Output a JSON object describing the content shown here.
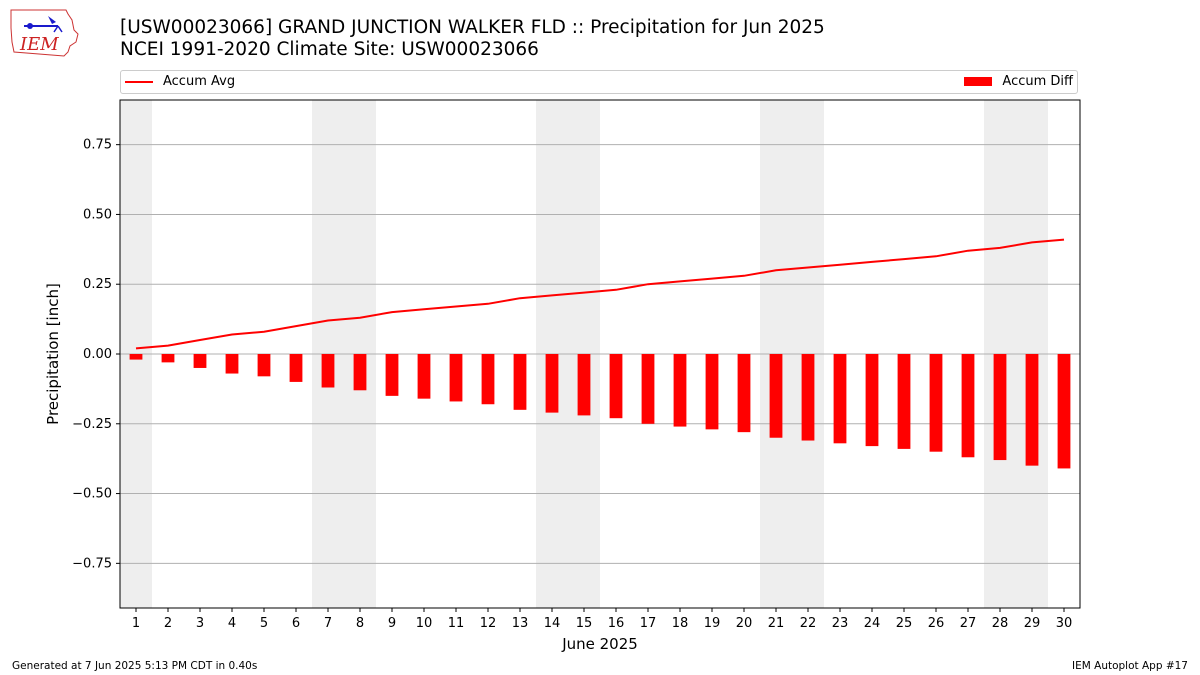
{
  "header": {
    "title_line1": "[USW00023066] GRAND JUNCTION WALKER FLD :: Precipitation for Jun 2025",
    "title_line2": "NCEI 1991-2020 Climate Site: USW00023066",
    "logo_text": "IEM"
  },
  "footer": {
    "left": "Generated at 7 Jun 2025 5:13 PM CDT in 0.40s",
    "right": "IEM Autoplot App #17"
  },
  "colors": {
    "accent": "#ff0000",
    "weekend_shade": "#eeeeee",
    "grid": "#b0b0b0"
  },
  "chart_data": {
    "type": "bar",
    "xlabel": "June 2025",
    "ylabel": "Precipitation [inch]",
    "ylim": [
      -0.91,
      0.91
    ],
    "xlim": [
      0.5,
      30.5
    ],
    "yticks": [
      -0.75,
      -0.5,
      -0.25,
      0.0,
      0.25,
      0.5,
      0.75
    ],
    "ytick_labels": [
      "−0.75",
      "−0.50",
      "−0.25",
      "0.00",
      "0.25",
      "0.50",
      "0.75"
    ],
    "categories": [
      "1",
      "2",
      "3",
      "4",
      "5",
      "6",
      "7",
      "8",
      "9",
      "10",
      "11",
      "12",
      "13",
      "14",
      "15",
      "16",
      "17",
      "18",
      "19",
      "20",
      "21",
      "22",
      "23",
      "24",
      "25",
      "26",
      "27",
      "28",
      "29",
      "30"
    ],
    "grid": "horizontal",
    "legend_placement": "top, above plot",
    "shaded_days": [
      1,
      7,
      8,
      14,
      15,
      21,
      22,
      28,
      29
    ],
    "series": [
      {
        "name": "Accum Avg",
        "kind": "line",
        "color": "#ff0000",
        "values": [
          0.02,
          0.03,
          0.05,
          0.07,
          0.08,
          0.1,
          0.12,
          0.13,
          0.15,
          0.16,
          0.17,
          0.18,
          0.2,
          0.21,
          0.22,
          0.23,
          0.25,
          0.26,
          0.27,
          0.28,
          0.3,
          0.31,
          0.32,
          0.33,
          0.34,
          0.35,
          0.37,
          0.38,
          0.4,
          0.41
        ]
      },
      {
        "name": "Accum Diff",
        "kind": "bar",
        "color": "#ff0000",
        "values": [
          -0.02,
          -0.03,
          -0.05,
          -0.07,
          -0.08,
          -0.1,
          -0.12,
          -0.13,
          -0.15,
          -0.16,
          -0.17,
          -0.18,
          -0.2,
          -0.21,
          -0.22,
          -0.23,
          -0.25,
          -0.26,
          -0.27,
          -0.28,
          -0.3,
          -0.31,
          -0.32,
          -0.33,
          -0.34,
          -0.35,
          -0.37,
          -0.38,
          -0.4,
          -0.41
        ]
      }
    ]
  }
}
